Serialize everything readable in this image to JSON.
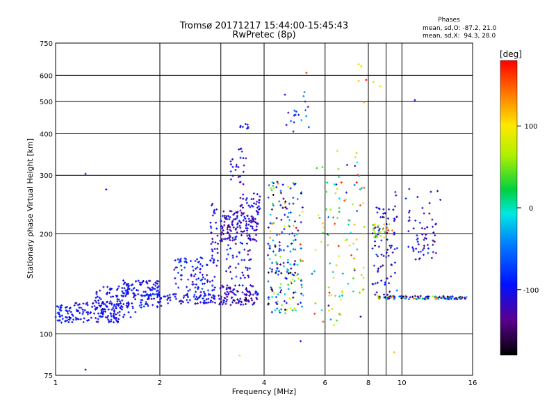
{
  "chart_data": {
    "type": "scatter",
    "title": "Tromsø 20171217 15:44:00-15:45:43",
    "subtitle": "RwPretec (8p)",
    "xlabel": "Frequency [MHz]",
    "ylabel": "Stationary phase Virtual Height [km]",
    "x_scale": "log",
    "y_scale": "log",
    "xlim": [
      1,
      16
    ],
    "ylim": [
      75,
      750
    ],
    "x_ticks": [
      "1",
      "2",
      "4",
      "6",
      "8",
      "10",
      "16"
    ],
    "x_tick_values": [
      1,
      2,
      4,
      6,
      8,
      10,
      16
    ],
    "y_ticks": [
      "75",
      "100",
      "200",
      "300",
      "400",
      "500",
      "600",
      "750"
    ],
    "y_tick_values": [
      75,
      100,
      200,
      300,
      400,
      500,
      600,
      750
    ],
    "grid": true,
    "phases_legend": {
      "heading": "Phases",
      "line_o": "mean, sd,O: -87.2, 21.0",
      "line_x": "mean, sd,X:  94.3, 28.0"
    },
    "colorbar": {
      "label": "[deg]",
      "range": [
        -180,
        180
      ],
      "ticks": [
        "100",
        "0",
        "-100"
      ],
      "tick_values": [
        100,
        0,
        -100
      ]
    },
    "point_groups": [
      {
        "fmin": 1.0,
        "fmax": 1.12,
        "hmin": 108,
        "hmax": 122,
        "pmean": -95,
        "psd": 12,
        "n": 45
      },
      {
        "fmin": 1.12,
        "fmax": 1.55,
        "hmin": 108,
        "hmax": 126,
        "pmean": -100,
        "psd": 10,
        "n": 110
      },
      {
        "fmin": 1.3,
        "fmax": 1.7,
        "hmin": 112,
        "hmax": 140,
        "pmean": -100,
        "psd": 10,
        "n": 90
      },
      {
        "fmin": 1.55,
        "fmax": 2.0,
        "hmin": 130,
        "hmax": 145,
        "pmean": -100,
        "psd": 12,
        "n": 80
      },
      {
        "fmin": 1.75,
        "fmax": 2.05,
        "hmin": 120,
        "hmax": 132,
        "pmean": -95,
        "psd": 15,
        "n": 40
      },
      {
        "fmin": 2.05,
        "fmax": 2.9,
        "hmin": 123,
        "hmax": 132,
        "pmean": -105,
        "psd": 15,
        "n": 70
      },
      {
        "fmin": 2.2,
        "fmax": 2.9,
        "hmin": 132,
        "hmax": 170,
        "pmean": -95,
        "psd": 20,
        "n": 90
      },
      {
        "fmin": 2.8,
        "fmax": 3.0,
        "hmin": 160,
        "hmax": 250,
        "pmean": -110,
        "psd": 15,
        "n": 30
      },
      {
        "fmin": 2.95,
        "fmax": 3.85,
        "hmin": 122,
        "hmax": 140,
        "pmean": -120,
        "psd": 20,
        "n": 110
      },
      {
        "fmin": 3.0,
        "fmax": 3.85,
        "hmin": 190,
        "hmax": 235,
        "pmean": -115,
        "psd": 18,
        "n": 140
      },
      {
        "fmin": 3.1,
        "fmax": 3.7,
        "hmin": 145,
        "hmax": 190,
        "pmean": -105,
        "psd": 25,
        "n": 40
      },
      {
        "fmin": 3.2,
        "fmax": 3.55,
        "hmin": 280,
        "hmax": 370,
        "pmean": -110,
        "psd": 15,
        "n": 25
      },
      {
        "fmin": 3.4,
        "fmax": 3.9,
        "hmin": 235,
        "hmax": 265,
        "pmean": -115,
        "psd": 20,
        "n": 30
      },
      {
        "fmin": 3.4,
        "fmax": 3.6,
        "hmin": 410,
        "hmax": 430,
        "pmean": -100,
        "psd": 10,
        "n": 8
      },
      {
        "fmin": 4.1,
        "fmax": 5.2,
        "hmin": 115,
        "hmax": 290,
        "pmean": -60,
        "psd": 70,
        "n": 200
      },
      {
        "fmin": 4.5,
        "fmax": 5.4,
        "hmin": 400,
        "hmax": 540,
        "pmean": -80,
        "psd": 40,
        "n": 20
      },
      {
        "fmin": 5.5,
        "fmax": 7.8,
        "hmin": 105,
        "hmax": 360,
        "pmean": 60,
        "psd": 60,
        "n": 110
      },
      {
        "fmin": 8.2,
        "fmax": 9.7,
        "hmin": 130,
        "hmax": 240,
        "pmean": -110,
        "psd": 30,
        "n": 80
      },
      {
        "fmin": 8.2,
        "fmax": 9.4,
        "hmin": 195,
        "hmax": 215,
        "pmean": 90,
        "psd": 40,
        "n": 25
      },
      {
        "fmin": 8.5,
        "fmax": 15.5,
        "hmin": 127,
        "hmax": 130,
        "pmean": -90,
        "psd": 70,
        "n": 110
      },
      {
        "fmin": 10.4,
        "fmax": 12.6,
        "hmin": 165,
        "hmax": 225,
        "pmean": -110,
        "psd": 20,
        "n": 50
      },
      {
        "fmin": 9.5,
        "fmax": 13.0,
        "hmin": 225,
        "hmax": 275,
        "pmean": -110,
        "psd": 20,
        "n": 15
      },
      {
        "fmin": 7.5,
        "fmax": 10.0,
        "hmin": 460,
        "hmax": 650,
        "pmean": 100,
        "psd": 40,
        "n": 6
      }
    ],
    "isolated_points": [
      {
        "f": 1.22,
        "h": 303,
        "p": -100
      },
      {
        "f": 1.4,
        "h": 272,
        "p": -95
      },
      {
        "f": 1.22,
        "h": 78,
        "p": -90
      },
      {
        "f": 10.9,
        "h": 505,
        "p": -100
      },
      {
        "f": 5.3,
        "h": 610,
        "p": 160
      },
      {
        "f": 7.5,
        "h": 648,
        "p": 110
      },
      {
        "f": 9.5,
        "h": 88,
        "p": 120
      },
      {
        "f": 3.4,
        "h": 86,
        "p": 100
      },
      {
        "f": 5.1,
        "h": 95,
        "p": -100
      }
    ]
  }
}
